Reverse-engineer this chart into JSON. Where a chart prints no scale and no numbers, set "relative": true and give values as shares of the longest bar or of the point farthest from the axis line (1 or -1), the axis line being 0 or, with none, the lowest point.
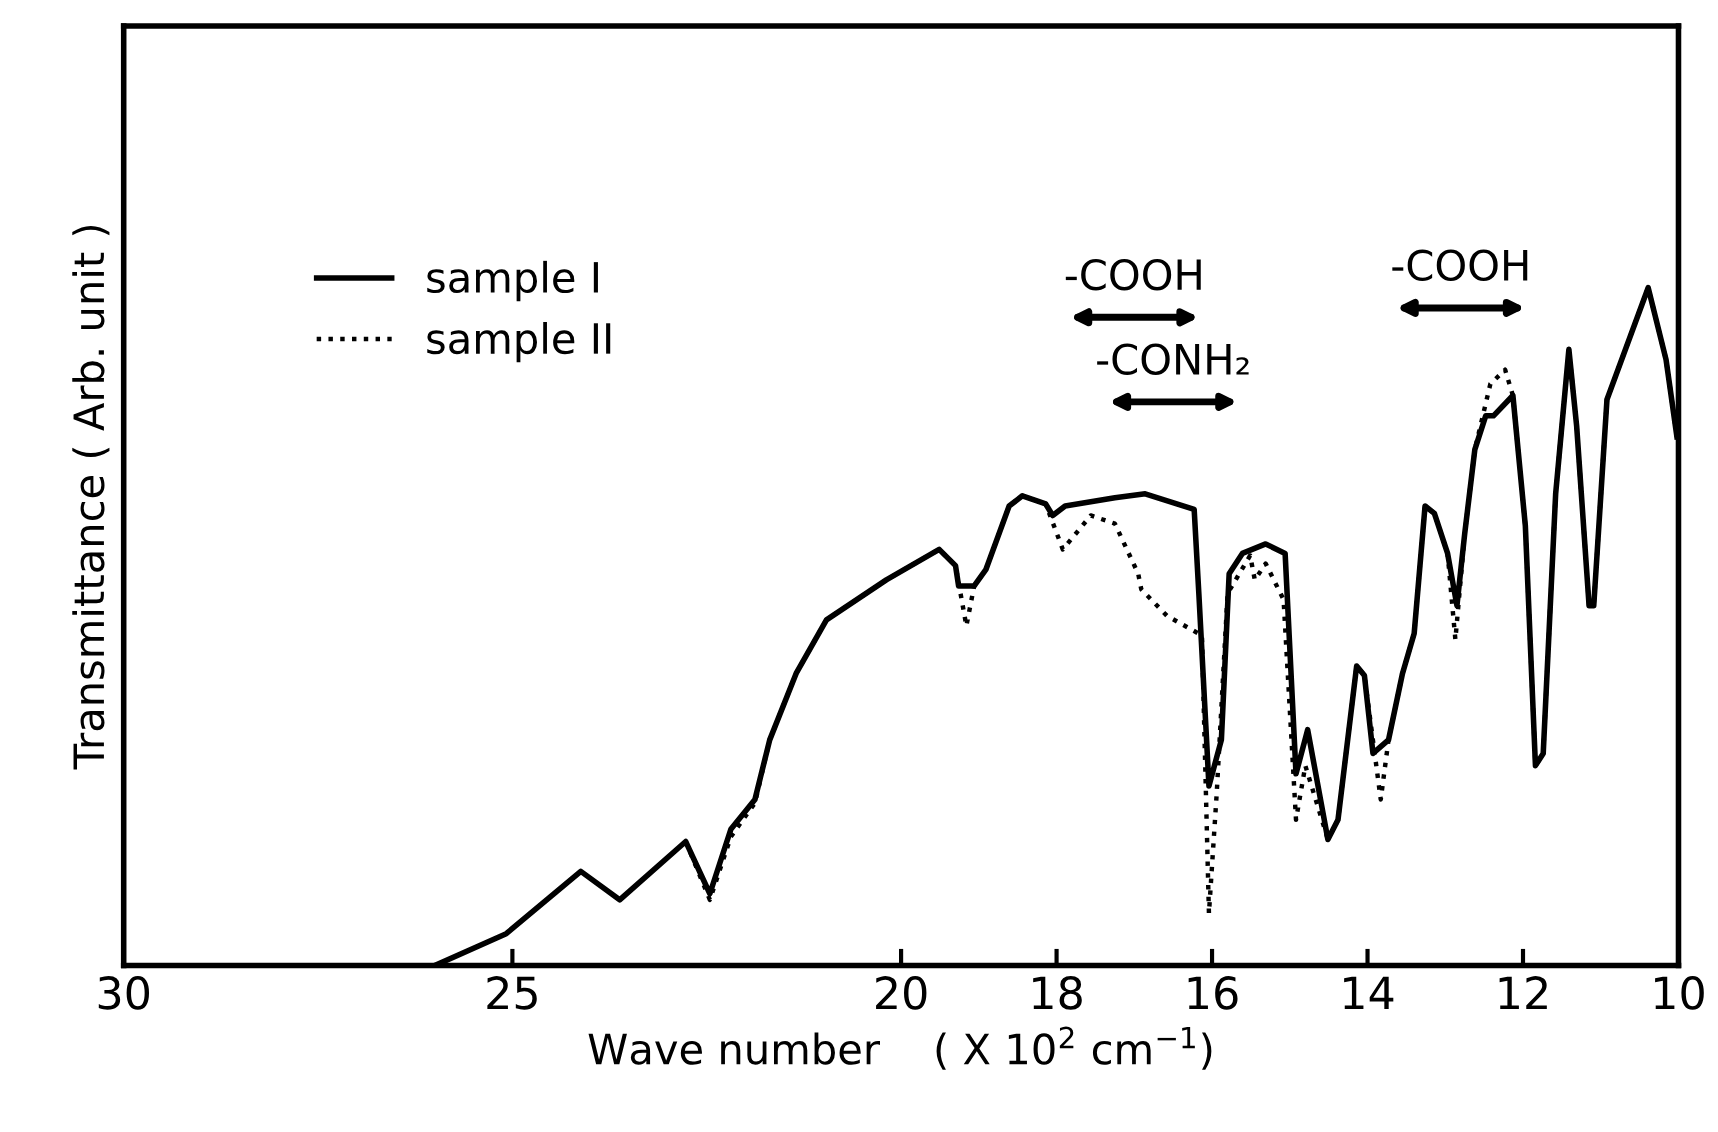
{
  "chart_data": {
    "type": "line",
    "relative": true,
    "xlabel": "Wave number    ( X 10$^{2}$ cm$^{−1}$)",
    "ylabel": "Transmittance ( Arb. unit )",
    "xlim": [
      30,
      10
    ],
    "xticks": [
      30,
      25,
      20,
      18,
      16,
      14,
      12,
      10
    ],
    "grid": false,
    "legend": "top left",
    "marker": "none",
    "annotations": [
      "-COOH",
      "-CONH₂",
      "-COOH"
    ],
    "series": [
      {
        "name": "sample I",
        "color": "#000000",
        "line_style": "solid",
        "x": [
          26.0,
          25.08,
          24.12,
          23.62,
          22.77,
          22.46,
          22.19,
          21.88,
          21.69,
          21.35,
          20.96,
          20.19,
          19.51,
          19.3,
          19.26,
          19.06,
          18.91,
          18.61,
          18.44,
          18.14,
          18.05,
          17.89,
          17.25,
          16.86,
          16.23,
          16.17,
          16.08,
          16.04,
          15.88,
          15.78,
          15.61,
          15.31,
          15.06,
          14.92,
          14.77,
          14.51,
          14.38,
          14.14,
          14.04,
          13.93,
          13.73,
          13.55,
          13.4,
          13.26,
          13.14,
          12.97,
          12.85,
          12.75,
          12.62,
          12.48,
          12.38,
          12.13,
          11.97,
          11.84,
          11.74,
          11.58,
          11.41,
          11.31,
          11.15,
          11.09,
          10.92,
          10.39,
          10.16,
          10.02
        ],
        "values": [
          0,
          0.047,
          0.139,
          0.097,
          0.183,
          0.106,
          0.201,
          0.245,
          0.333,
          0.431,
          0.51,
          0.569,
          0.614,
          0.59,
          0.56,
          0.56,
          0.584,
          0.678,
          0.693,
          0.681,
          0.664,
          0.678,
          0.69,
          0.696,
          0.673,
          0.549,
          0.354,
          0.265,
          0.333,
          0.578,
          0.608,
          0.622,
          0.608,
          0.283,
          0.348,
          0.186,
          0.215,
          0.442,
          0.428,
          0.313,
          0.333,
          0.431,
          0.49,
          0.678,
          0.667,
          0.608,
          0.531,
          0.637,
          0.761,
          0.811,
          0.811,
          0.841,
          0.649,
          0.295,
          0.313,
          0.696,
          0.909,
          0.796,
          0.531,
          0.531,
          0.835,
          1,
          0.894,
          0.78
        ]
      },
      {
        "name": "sample II",
        "color": "#000000",
        "line_style": "dotted",
        "x": [
          22.77,
          22.46,
          22.19,
          21.88,
          21.69,
          21.35,
          20.96,
          20.19,
          19.51,
          19.3,
          19.16,
          19.06,
          18.91,
          18.61,
          18.44,
          18.14,
          17.92,
          17.56,
          17.25,
          16.95,
          16.91,
          16.58,
          16.13,
          16.04,
          15.94,
          15.8,
          15.51,
          15.45,
          15.31,
          15.08,
          14.92,
          14.8,
          14.51,
          14.38,
          14.14,
          14.04,
          13.83,
          13.73,
          13.55,
          13.4,
          13.26,
          13.14,
          12.97,
          12.87,
          12.75,
          12.62,
          12.42,
          12.23,
          12.13,
          11.97,
          11.84,
          11.74,
          11.58,
          11.41,
          11.31,
          11.15,
          11.09,
          10.92,
          10.39,
          10.16,
          10.02
        ],
        "values": [
          0.183,
          0.097,
          0.19,
          0.24,
          0.333,
          0.431,
          0.51,
          0.569,
          0.614,
          0.59,
          0.501,
          0.56,
          0.584,
          0.678,
          0.693,
          0.681,
          0.614,
          0.664,
          0.652,
          0.578,
          0.555,
          0.516,
          0.487,
          0.077,
          0.254,
          0.549,
          0.605,
          0.569,
          0.593,
          0.54,
          0.215,
          0.295,
          0.186,
          0.215,
          0.442,
          0.428,
          0.245,
          0.333,
          0.431,
          0.49,
          0.678,
          0.667,
          0.608,
          0.481,
          0.637,
          0.761,
          0.858,
          0.879,
          0.841,
          0.649,
          0.295,
          0.313,
          0.696,
          0.909,
          0.796,
          0.531,
          0.531,
          0.835,
          1,
          0.894,
          0.78
        ]
      }
    ]
  }
}
